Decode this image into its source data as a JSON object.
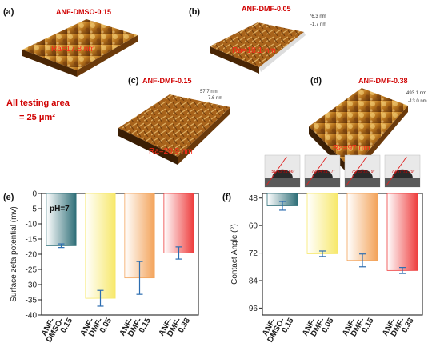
{
  "afm_panels": [
    {
      "letter": "(a)",
      "title": "ANF-DMSO-0.15",
      "ra": "Ra=17.8 nm",
      "zlabels": []
    },
    {
      "letter": "(b)",
      "title": "ANF-DMF-0.05",
      "ra": "Ra=18.1 nm",
      "zlabels": [
        "76.3 nm",
        "-1.7 nm"
      ]
    },
    {
      "letter": "(c)",
      "title": "ANF-DMF-0.15",
      "ra": "Ra=20.9 nm",
      "zlabels": [
        "57.7 nm",
        "-7.6 nm"
      ]
    },
    {
      "letter": "(d)",
      "title": "ANF-DMF-0.38",
      "ra": "Ra=97 nm",
      "zlabels": [
        "493.1 nm",
        "-13.0 nm"
      ]
    }
  ],
  "testing_area": {
    "line1": "All testing area",
    "line2": "= 25 μm²"
  },
  "colors": {
    "title_red": "#d00000",
    "ra_red": "#ff2a1a",
    "axis": "#222222",
    "error": "#2c6db0"
  },
  "chart_data": [
    {
      "type": "bar",
      "panel": "(e)",
      "categories": [
        [
          "ANF-",
          "DMSO-",
          "0.15"
        ],
        [
          "ANF-",
          "DMF-",
          "0.05"
        ],
        [
          "ANF-",
          "DMF-",
          "0.15"
        ],
        [
          "ANF-",
          "DMF-",
          "0.38"
        ]
      ],
      "values": [
        -17.2,
        -34.5,
        -27.8,
        -19.6
      ],
      "errors": [
        0.6,
        2.6,
        5.4,
        2.0
      ],
      "annotation": "pH=7",
      "ylabel": "Surface zeta potential (mv)",
      "yticks": [
        0,
        -5,
        -10,
        -15,
        -20,
        -25,
        -30,
        -35,
        -40
      ],
      "ylim": [
        0,
        -40
      ],
      "bar_colors": [
        "#2f6f78",
        "#f7e86a",
        "#f3a35a",
        "#ee3e3e"
      ],
      "grid": false
    },
    {
      "type": "bar",
      "panel": "(f)",
      "categories": [
        [
          "ANF-",
          "DMSO-",
          "0.15"
        ],
        [
          "ANF-",
          "DMF-",
          "0.05"
        ],
        [
          "ANF-",
          "DMF-",
          "0.15"
        ],
        [
          "ANF-",
          "DMF-",
          "0.38"
        ]
      ],
      "values": [
        51.4,
        72.3,
        75.2,
        79.6
      ],
      "errors": [
        1.9,
        1.2,
        2.8,
        1.3
      ],
      "droplet_labels": [
        "51.43°±1.86°",
        "72.34°±1.17°",
        "75.15°±2.79°",
        "79.57°±1.29°"
      ],
      "ylabel": "Contact Angle (°)",
      "yticks": [
        48,
        60,
        72,
        84,
        96
      ],
      "ylim": [
        46,
        99
      ],
      "bar_colors": [
        "#2f6f78",
        "#f7e86a",
        "#f3a35a",
        "#ee3e3e"
      ],
      "grid": false
    }
  ]
}
